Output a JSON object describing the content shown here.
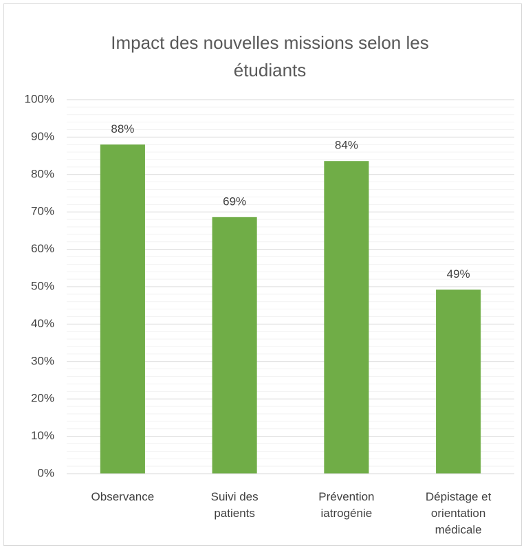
{
  "chart_data": {
    "type": "bar",
    "title": "Impact des nouvelles missions selon les étudiants",
    "categories": [
      "Observance",
      "Suivi des patients",
      "Prévention iatrogénie",
      "Dépistage et orientation médicale"
    ],
    "values": [
      88,
      68.6,
      83.6,
      49.2
    ],
    "value_labels": [
      "88%",
      "69%",
      "84%",
      "49%"
    ],
    "color": "#70ad47",
    "ylim": [
      0,
      100
    ],
    "yticks": [
      {
        "value": 0,
        "label": "0%"
      },
      {
        "value": 10,
        "label": "10%"
      },
      {
        "value": 20,
        "label": "20%"
      },
      {
        "value": 30,
        "label": "30%"
      },
      {
        "value": 40,
        "label": "40%"
      },
      {
        "value": 50,
        "label": "50%"
      },
      {
        "value": 60,
        "label": "60%"
      },
      {
        "value": 70,
        "label": "70%"
      },
      {
        "value": 80,
        "label": "80%"
      },
      {
        "value": 90,
        "label": "90%"
      },
      {
        "value": 100,
        "label": "100%"
      }
    ],
    "minor_yticks": [
      2,
      4,
      6,
      8,
      12,
      14,
      16,
      18,
      22,
      24,
      26,
      28,
      32,
      34,
      36,
      38,
      42,
      44,
      46,
      48,
      52,
      54,
      56,
      58,
      62,
      64,
      66,
      68,
      72,
      74,
      76,
      78,
      82,
      84,
      86,
      88,
      92,
      94,
      96,
      98
    ],
    "grid": true
  }
}
